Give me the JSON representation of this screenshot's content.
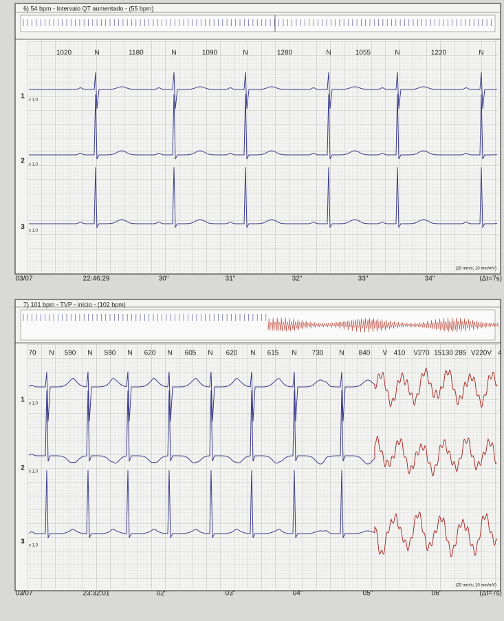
{
  "panels": [
    {
      "title": "6) 54 bpm - Intervalo QT aumentado - (55 bpm)",
      "intervals": [
        "1020",
        "N",
        "1180",
        "N",
        "1090",
        "N",
        "1280",
        "N",
        "1055",
        "N",
        "1220",
        "N"
      ],
      "leads": [
        {
          "label": "1",
          "gain": "x 1,0"
        },
        {
          "label": "2",
          "gain": "x 1,0"
        },
        {
          "label": "3",
          "gain": "x 1,0"
        }
      ],
      "scale": "(25 mm/s; 10 mm/mV)",
      "footer": [
        "03/07",
        "22:46:29",
        "30\"",
        "31\"",
        "32\"",
        "33\"",
        "34\"",
        "(Δt=7s)"
      ]
    },
    {
      "title": "7) 101 bpm - TVP - início - (102 bpm)",
      "intervals": [
        "70",
        "N",
        "590",
        "N",
        "590",
        "N",
        "620",
        "N",
        "605",
        "N",
        "620",
        "N",
        "615",
        "N",
        "730",
        "N",
        "840",
        "V",
        "410",
        "V270",
        "15130",
        "285",
        "V220V",
        "4"
      ],
      "leads": [
        {
          "label": "1",
          "gain": "x 1,0"
        },
        {
          "label": "2",
          "gain": "x 1,0"
        },
        {
          "label": "3",
          "gain": "x 1,0"
        }
      ],
      "scale": "(25 mm/s; 10 mm/mV)",
      "footer": [
        "03/07",
        "23:32:01",
        "02\"",
        "03\"",
        "04\"",
        "05\"",
        "06\"",
        "(Δt=7s)"
      ]
    }
  ]
}
